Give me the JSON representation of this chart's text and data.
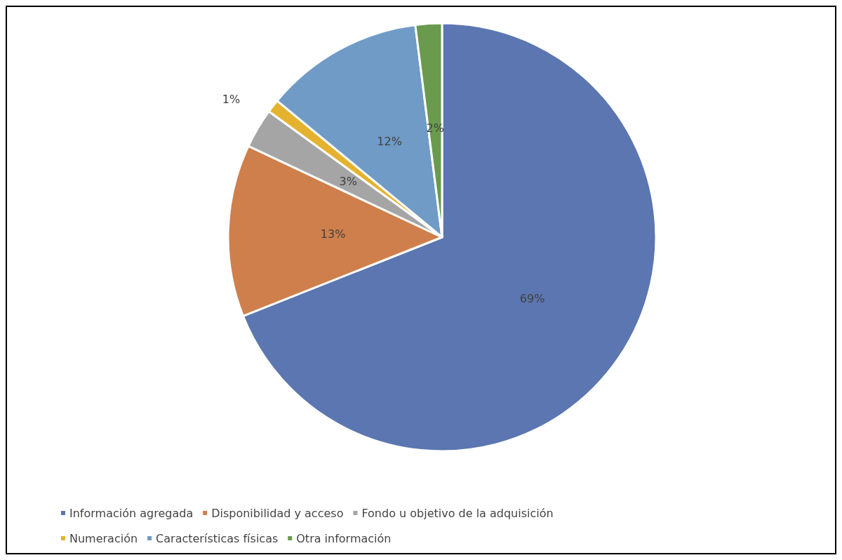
{
  "chart_data": {
    "type": "pie",
    "categories": [
      "Información agregada",
      "Disponibilidad y acceso",
      "Fondo u objetivo de la adquisición",
      "Numeración",
      "Características físicas",
      "Otra información"
    ],
    "values": [
      69,
      13,
      3,
      1,
      12,
      2
    ],
    "value_labels": [
      "69%",
      "13%",
      "3%",
      "1%",
      "12%",
      "2%"
    ],
    "colors": [
      "#5b76b0",
      "#cf7f4b",
      "#a5a5a5",
      "#e4b22e",
      "#6f9bc6",
      "#6a9a4e"
    ],
    "legend": "bottom"
  }
}
